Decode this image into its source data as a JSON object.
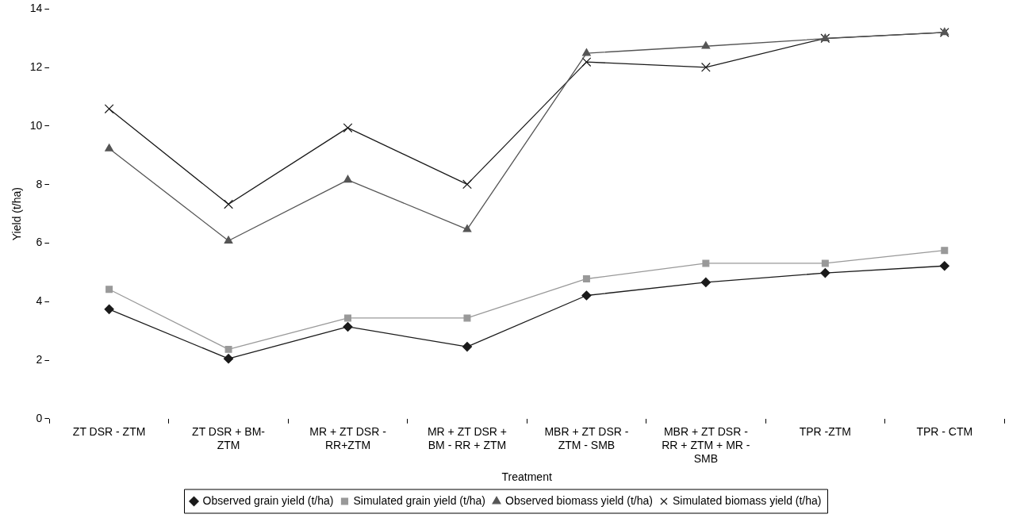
{
  "chart_data": {
    "type": "line",
    "xlabel": "Treatment",
    "ylabel": "Yield (t/ha)",
    "categories": [
      "ZT DSR - ZTM",
      "ZT DSR + BM- ZTM",
      "MR + ZT DSR - RR+ZTM",
      "MR + ZT DSR + BM - RR + ZTM",
      "MBR + ZT DSR - ZTM - SMB",
      "MBR + ZT DSR - RR + ZTM + MR - SMB",
      "TPR -ZTM",
      "TPR - CTM"
    ],
    "series": [
      {
        "name": "Observed grain yield (t/ha)",
        "color": "#1a1a1a",
        "marker": "diamond",
        "values": [
          3.74,
          2.05,
          3.14,
          2.46,
          4.21,
          4.66,
          4.98,
          5.22
        ]
      },
      {
        "name": "Simulated grain yield (t/ha)",
        "color": "#999999",
        "marker": "square",
        "values": [
          4.42,
          2.37,
          3.44,
          3.44,
          4.78,
          5.31,
          5.31,
          5.75
        ]
      },
      {
        "name": "Observed biomass yield (t/ha)",
        "color": "#555555",
        "marker": "triangle",
        "values": [
          9.23,
          6.08,
          8.16,
          6.47,
          12.49,
          12.73,
          12.99,
          13.2
        ]
      },
      {
        "name": "Simulated biomass yield (t/ha)",
        "color": "#1a1a1a",
        "marker": "cross",
        "values": [
          10.59,
          7.33,
          9.94,
          8.01,
          12.19,
          12.01,
          13.0,
          13.2
        ]
      }
    ],
    "ylim": [
      0,
      14
    ],
    "yticks": [
      0,
      2,
      4,
      6,
      8,
      10,
      12,
      14
    ],
    "grid": false,
    "legend": "bottom",
    "line_style": "solid"
  }
}
